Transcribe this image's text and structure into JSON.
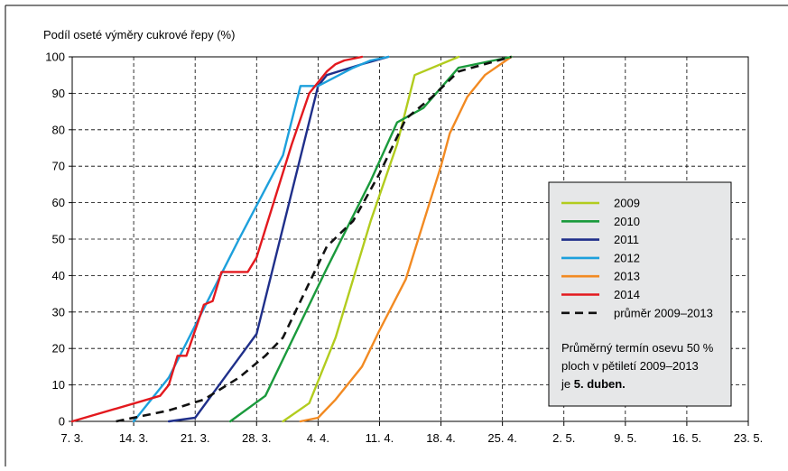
{
  "chart_data": {
    "type": "line",
    "ylabel": "Podíl oseté výměry cukrové řepy (%)",
    "xlabel": "",
    "x_ticks": [
      "7. 3.",
      "14. 3.",
      "21. 3.",
      "28. 3.",
      "4. 4.",
      "11. 4.",
      "18. 4.",
      "25. 4.",
      "2. 5.",
      "9. 5.",
      "16. 5.",
      "23. 5."
    ],
    "y_ticks": [
      "0",
      "10",
      "20",
      "30",
      "40",
      "50",
      "60",
      "70",
      "80",
      "90",
      "100"
    ],
    "xlim": [
      "7. 3.",
      "23. 5."
    ],
    "ylim": [
      0,
      100
    ],
    "grid": "dashed",
    "legend_position": "right",
    "series": [
      {
        "name": "2009",
        "color": "#b2cc1e",
        "dash": false,
        "points": [
          [
            "31. 3.",
            0
          ],
          [
            "3. 4.",
            5
          ],
          [
            "6. 4.",
            23
          ],
          [
            "10. 4.",
            55
          ],
          [
            "13. 4.",
            76
          ],
          [
            "15. 4.",
            95
          ],
          [
            "20. 4.",
            100
          ]
        ]
      },
      {
        "name": "2010",
        "color": "#1a9a3c",
        "dash": false,
        "points": [
          [
            "25. 3.",
            0
          ],
          [
            "29. 3.",
            7
          ],
          [
            "5. 4.",
            42
          ],
          [
            "10. 4.",
            66
          ],
          [
            "13. 4.",
            82
          ],
          [
            "16. 4.",
            86
          ],
          [
            "20. 4.",
            97
          ],
          [
            "26. 4.",
            100
          ]
        ]
      },
      {
        "name": "2011",
        "color": "#1f2f8a",
        "dash": false,
        "points": [
          [
            "18. 3.",
            0
          ],
          [
            "21. 3.",
            1
          ],
          [
            "28. 3.",
            24
          ],
          [
            "4. 4.",
            92
          ],
          [
            "5. 4.",
            95
          ],
          [
            "9. 4.",
            98
          ],
          [
            "12. 4.",
            100
          ]
        ]
      },
      {
        "name": "2012",
        "color": "#1da0dc",
        "dash": false,
        "points": [
          [
            "14. 3.",
            0
          ],
          [
            "18. 3.",
            12
          ],
          [
            "26. 3.",
            50
          ],
          [
            "31. 3.",
            73
          ],
          [
            "2. 4.",
            92
          ],
          [
            "4. 4.",
            92
          ],
          [
            "8. 4.",
            97
          ],
          [
            "10. 4.",
            99
          ],
          [
            "12. 4.",
            100
          ]
        ]
      },
      {
        "name": "2013",
        "color": "#f28a22",
        "dash": false,
        "points": [
          [
            "2. 4.",
            0
          ],
          [
            "4. 4.",
            1
          ],
          [
            "6. 4.",
            6
          ],
          [
            "9. 4.",
            15
          ],
          [
            "11. 4.",
            25
          ],
          [
            "14. 4.",
            39
          ],
          [
            "18. 4.",
            70
          ],
          [
            "19. 4.",
            79
          ],
          [
            "21. 4.",
            89
          ],
          [
            "23. 4.",
            95
          ],
          [
            "26. 4.",
            100
          ]
        ]
      },
      {
        "name": "2014",
        "color": "#e3191e",
        "dash": false,
        "points": [
          [
            "7. 3.",
            0
          ],
          [
            "17. 3.",
            7
          ],
          [
            "18. 3.",
            10
          ],
          [
            "19. 3.",
            18
          ],
          [
            "20. 3.",
            18
          ],
          [
            "22. 3.",
            32
          ],
          [
            "23. 3.",
            33
          ],
          [
            "24. 3.",
            41
          ],
          [
            "27. 3.",
            41
          ],
          [
            "28. 3.",
            45
          ],
          [
            "1. 4.",
            76
          ],
          [
            "3. 4.",
            90
          ],
          [
            "5. 4.",
            96
          ],
          [
            "6. 4.",
            98
          ],
          [
            "7. 4.",
            99
          ],
          [
            "9. 4.",
            100
          ]
        ]
      },
      {
        "name": "průměr 2009–2013",
        "color": "#111111",
        "dash": true,
        "points": [
          [
            "12. 3.",
            0
          ],
          [
            "18. 3.",
            3
          ],
          [
            "22. 3.",
            6
          ],
          [
            "26. 3.",
            12
          ],
          [
            "29. 3.",
            18
          ],
          [
            "31. 3.",
            23
          ],
          [
            "3. 4.",
            38
          ],
          [
            "5. 4.",
            48
          ],
          [
            "8. 4.",
            55
          ],
          [
            "11. 4.",
            68
          ],
          [
            "14. 4.",
            83
          ],
          [
            "17. 4.",
            89
          ],
          [
            "20. 4.",
            96
          ],
          [
            "26. 4.",
            100
          ]
        ]
      }
    ],
    "annotation": {
      "line1": "Průměrný termín osevu 50 %",
      "line2": "ploch v pětiletí 2009–2013",
      "line3_prefix": "je ",
      "line3_bold": "5. duben."
    },
    "colors": {
      "frame": "#000000",
      "grid": "#000000",
      "legend_bg": "#e6e7e8"
    }
  }
}
